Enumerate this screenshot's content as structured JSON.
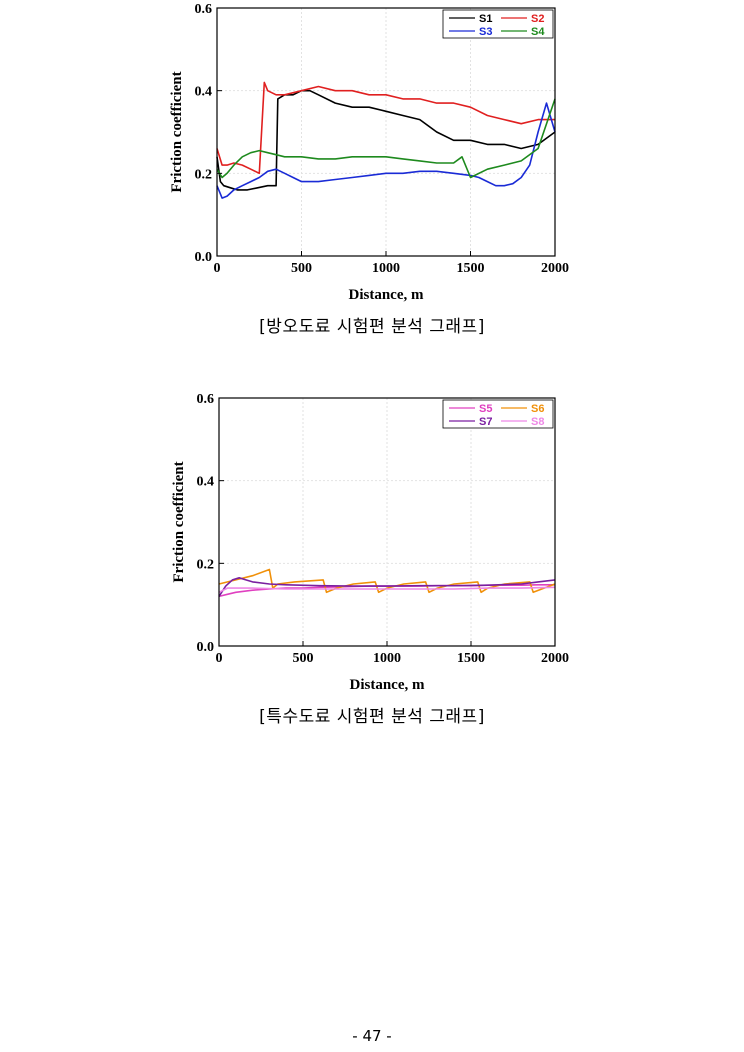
{
  "page": {
    "page_number": "- 47 -"
  },
  "chart_data": [
    {
      "type": "line",
      "caption": "[방오도료 시험편 분석 그래프]",
      "xlabel": "Distance, m",
      "ylabel": "Friction coefficient",
      "xlim": [
        0,
        2000
      ],
      "ylim": [
        0.0,
        0.6
      ],
      "x_ticks": [
        "0",
        "500",
        "1000",
        "1500",
        "2000"
      ],
      "y_ticks": [
        "0.0",
        "0.2",
        "0.4",
        "0.6"
      ],
      "grid": true,
      "legend_position": "top-right",
      "series": [
        {
          "name": "S1",
          "color": "#000000",
          "x": [
            0,
            20,
            40,
            80,
            120,
            180,
            240,
            300,
            350,
            360,
            400,
            450,
            500,
            550,
            600,
            700,
            800,
            900,
            1000,
            1100,
            1200,
            1300,
            1400,
            1500,
            1600,
            1700,
            1800,
            1900,
            2000
          ],
          "y": [
            0.24,
            0.18,
            0.17,
            0.165,
            0.16,
            0.16,
            0.165,
            0.17,
            0.17,
            0.38,
            0.39,
            0.39,
            0.4,
            0.4,
            0.39,
            0.37,
            0.36,
            0.36,
            0.35,
            0.34,
            0.33,
            0.3,
            0.28,
            0.28,
            0.27,
            0.27,
            0.26,
            0.27,
            0.3
          ]
        },
        {
          "name": "S2",
          "color": "#e02020",
          "x": [
            0,
            30,
            60,
            100,
            150,
            200,
            250,
            280,
            300,
            350,
            400,
            500,
            600,
            700,
            800,
            900,
            1000,
            1100,
            1200,
            1300,
            1400,
            1500,
            1600,
            1700,
            1800,
            1900,
            2000
          ],
          "y": [
            0.26,
            0.22,
            0.22,
            0.225,
            0.22,
            0.21,
            0.2,
            0.42,
            0.4,
            0.39,
            0.39,
            0.4,
            0.41,
            0.4,
            0.4,
            0.39,
            0.39,
            0.38,
            0.38,
            0.37,
            0.37,
            0.36,
            0.34,
            0.33,
            0.32,
            0.33,
            0.33
          ]
        },
        {
          "name": "S3",
          "color": "#1a2bd6",
          "x": [
            0,
            30,
            60,
            100,
            150,
            200,
            250,
            300,
            350,
            400,
            450,
            500,
            550,
            600,
            700,
            800,
            900,
            1000,
            1100,
            1200,
            1300,
            1400,
            1500,
            1550,
            1600,
            1650,
            1700,
            1750,
            1800,
            1850,
            1900,
            1950,
            2000
          ],
          "y": [
            0.17,
            0.14,
            0.145,
            0.16,
            0.17,
            0.18,
            0.19,
            0.205,
            0.21,
            0.2,
            0.19,
            0.18,
            0.18,
            0.18,
            0.185,
            0.19,
            0.195,
            0.2,
            0.2,
            0.205,
            0.205,
            0.2,
            0.195,
            0.19,
            0.18,
            0.17,
            0.17,
            0.175,
            0.19,
            0.22,
            0.3,
            0.37,
            0.3
          ]
        },
        {
          "name": "S4",
          "color": "#1e8a1e",
          "x": [
            0,
            30,
            60,
            100,
            150,
            200,
            250,
            300,
            350,
            400,
            500,
            600,
            700,
            800,
            900,
            1000,
            1100,
            1200,
            1300,
            1400,
            1450,
            1500,
            1600,
            1700,
            1800,
            1900,
            2000
          ],
          "y": [
            0.21,
            0.19,
            0.2,
            0.22,
            0.24,
            0.25,
            0.255,
            0.25,
            0.245,
            0.24,
            0.24,
            0.235,
            0.235,
            0.24,
            0.24,
            0.24,
            0.235,
            0.23,
            0.225,
            0.225,
            0.24,
            0.19,
            0.21,
            0.22,
            0.23,
            0.26,
            0.38
          ]
        }
      ]
    },
    {
      "type": "line",
      "caption": "[특수도료 시험편 분석 그래프]",
      "xlabel": "Distance, m",
      "ylabel": "Friction coefficient",
      "xlim": [
        0,
        2000
      ],
      "ylim": [
        0.0,
        0.6
      ],
      "x_ticks": [
        "0",
        "500",
        "1000",
        "1500",
        "2000"
      ],
      "y_ticks": [
        "0.0",
        "0.2",
        "0.4",
        "0.6"
      ],
      "grid": true,
      "legend_position": "top-right",
      "series": [
        {
          "name": "S5",
          "color": "#e040c0",
          "x": [
            0,
            50,
            100,
            200,
            300,
            400,
            500,
            600,
            700,
            800,
            900,
            1000,
            1100,
            1200,
            1300,
            1400,
            1500,
            1600,
            1700,
            1800,
            1900,
            2000
          ],
          "y": [
            0.12,
            0.125,
            0.13,
            0.135,
            0.138,
            0.14,
            0.14,
            0.142,
            0.143,
            0.144,
            0.145,
            0.145,
            0.145,
            0.145,
            0.146,
            0.146,
            0.146,
            0.147,
            0.147,
            0.147,
            0.148,
            0.148
          ]
        },
        {
          "name": "S6",
          "color": "#f0900a",
          "x": [
            0,
            100,
            200,
            300,
            320,
            350,
            450,
            620,
            640,
            700,
            800,
            930,
            950,
            1000,
            1100,
            1230,
            1250,
            1300,
            1400,
            1540,
            1560,
            1600,
            1700,
            1850,
            1870,
            2000
          ],
          "y": [
            0.15,
            0.16,
            0.17,
            0.185,
            0.14,
            0.15,
            0.155,
            0.16,
            0.13,
            0.14,
            0.15,
            0.155,
            0.13,
            0.14,
            0.15,
            0.155,
            0.13,
            0.14,
            0.15,
            0.155,
            0.13,
            0.14,
            0.15,
            0.155,
            0.13,
            0.15
          ]
        },
        {
          "name": "S7",
          "color": "#7a1fa0",
          "x": [
            0,
            40,
            80,
            120,
            160,
            200,
            300,
            400,
            600,
            800,
            1000,
            1200,
            1400,
            1600,
            1800,
            1900,
            2000
          ],
          "y": [
            0.12,
            0.145,
            0.16,
            0.165,
            0.16,
            0.155,
            0.15,
            0.148,
            0.146,
            0.145,
            0.145,
            0.146,
            0.146,
            0.147,
            0.15,
            0.155,
            0.16
          ]
        },
        {
          "name": "S8",
          "color": "#ee88e6",
          "x": [
            0,
            50,
            100,
            200,
            400,
            600,
            800,
            1000,
            1200,
            1400,
            1600,
            1800,
            2000
          ],
          "y": [
            0.13,
            0.14,
            0.14,
            0.14,
            0.138,
            0.138,
            0.138,
            0.138,
            0.138,
            0.138,
            0.14,
            0.14,
            0.142
          ]
        }
      ]
    }
  ]
}
